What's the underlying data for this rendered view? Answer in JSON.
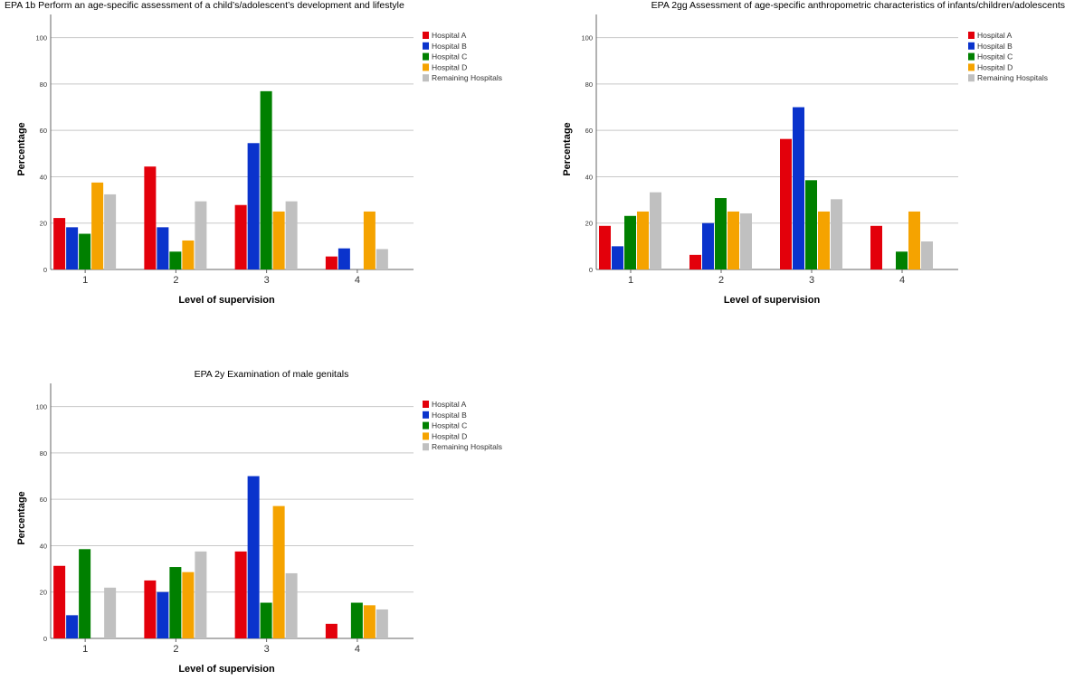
{
  "legend": {
    "entries": [
      "Hospital A",
      "Hospital B",
      "Hospital C",
      "Hospital D",
      "Remaining Hospitals"
    ],
    "colors": [
      "#e3000b",
      "#0a33cc",
      "#008000",
      "#f5a300",
      "#c0c0c0"
    ],
    "placement": "right"
  },
  "chart_data": [
    {
      "type": "bar",
      "title": "EPA 1b Perform an age-specific assessment of a child’s/adolescent’s development and lifestyle",
      "xlabel": "Level of supervision",
      "ylabel": "Percentage",
      "categories": [
        "1",
        "2",
        "3",
        "4"
      ],
      "yticks": [
        "0",
        "20",
        "40",
        "60",
        "80",
        "100"
      ],
      "ylim": [
        0,
        110
      ],
      "grid": true,
      "series": [
        {
          "name": "Hospital A",
          "values": [
            22.2,
            44.4,
            27.8,
            5.6
          ]
        },
        {
          "name": "Hospital B",
          "values": [
            18.2,
            18.2,
            54.5,
            9.1
          ]
        },
        {
          "name": "Hospital C",
          "values": [
            15.4,
            7.7,
            76.9,
            0
          ]
        },
        {
          "name": "Hospital D",
          "values": [
            37.5,
            12.5,
            25.0,
            25.0
          ]
        },
        {
          "name": "Remaining Hospitals",
          "values": [
            32.4,
            29.4,
            29.4,
            8.8
          ]
        }
      ]
    },
    {
      "type": "bar",
      "title": "EPA 2gg Assessment of age-specific anthropometric characteristics of infants/children/adolescents",
      "xlabel": "Level of supervision",
      "ylabel": "Percentage",
      "categories": [
        "1",
        "2",
        "3",
        "4"
      ],
      "yticks": [
        "0",
        "20",
        "40",
        "60",
        "80",
        "100"
      ],
      "ylim": [
        0,
        110
      ],
      "grid": true,
      "series": [
        {
          "name": "Hospital A",
          "values": [
            18.8,
            6.3,
            56.3,
            18.8
          ]
        },
        {
          "name": "Hospital B",
          "values": [
            10.0,
            20.0,
            70.0,
            0
          ]
        },
        {
          "name": "Hospital C",
          "values": [
            23.1,
            30.8,
            38.5,
            7.7
          ]
        },
        {
          "name": "Hospital D",
          "values": [
            25.0,
            25.0,
            25.0,
            25.0
          ]
        },
        {
          "name": "Remaining Hospitals",
          "values": [
            33.3,
            24.2,
            30.3,
            12.1
          ]
        }
      ]
    },
    {
      "type": "bar",
      "title": "EPA 2y Examination of male genitals",
      "xlabel": "Level of supervision",
      "ylabel": "Percentage",
      "categories": [
        "1",
        "2",
        "3",
        "4"
      ],
      "yticks": [
        "0",
        "20",
        "40",
        "60",
        "80",
        "100"
      ],
      "ylim": [
        0,
        110
      ],
      "grid": true,
      "series": [
        {
          "name": "Hospital A",
          "values": [
            31.3,
            25.0,
            37.5,
            6.3
          ]
        },
        {
          "name": "Hospital B",
          "values": [
            10.0,
            20.0,
            70.0,
            0
          ]
        },
        {
          "name": "Hospital C",
          "values": [
            38.5,
            30.8,
            15.4,
            15.4
          ]
        },
        {
          "name": "Hospital D",
          "values": [
            0,
            28.6,
            57.1,
            14.3
          ]
        },
        {
          "name": "Remaining Hospitals",
          "values": [
            21.9,
            37.5,
            28.1,
            12.5
          ]
        }
      ]
    }
  ]
}
